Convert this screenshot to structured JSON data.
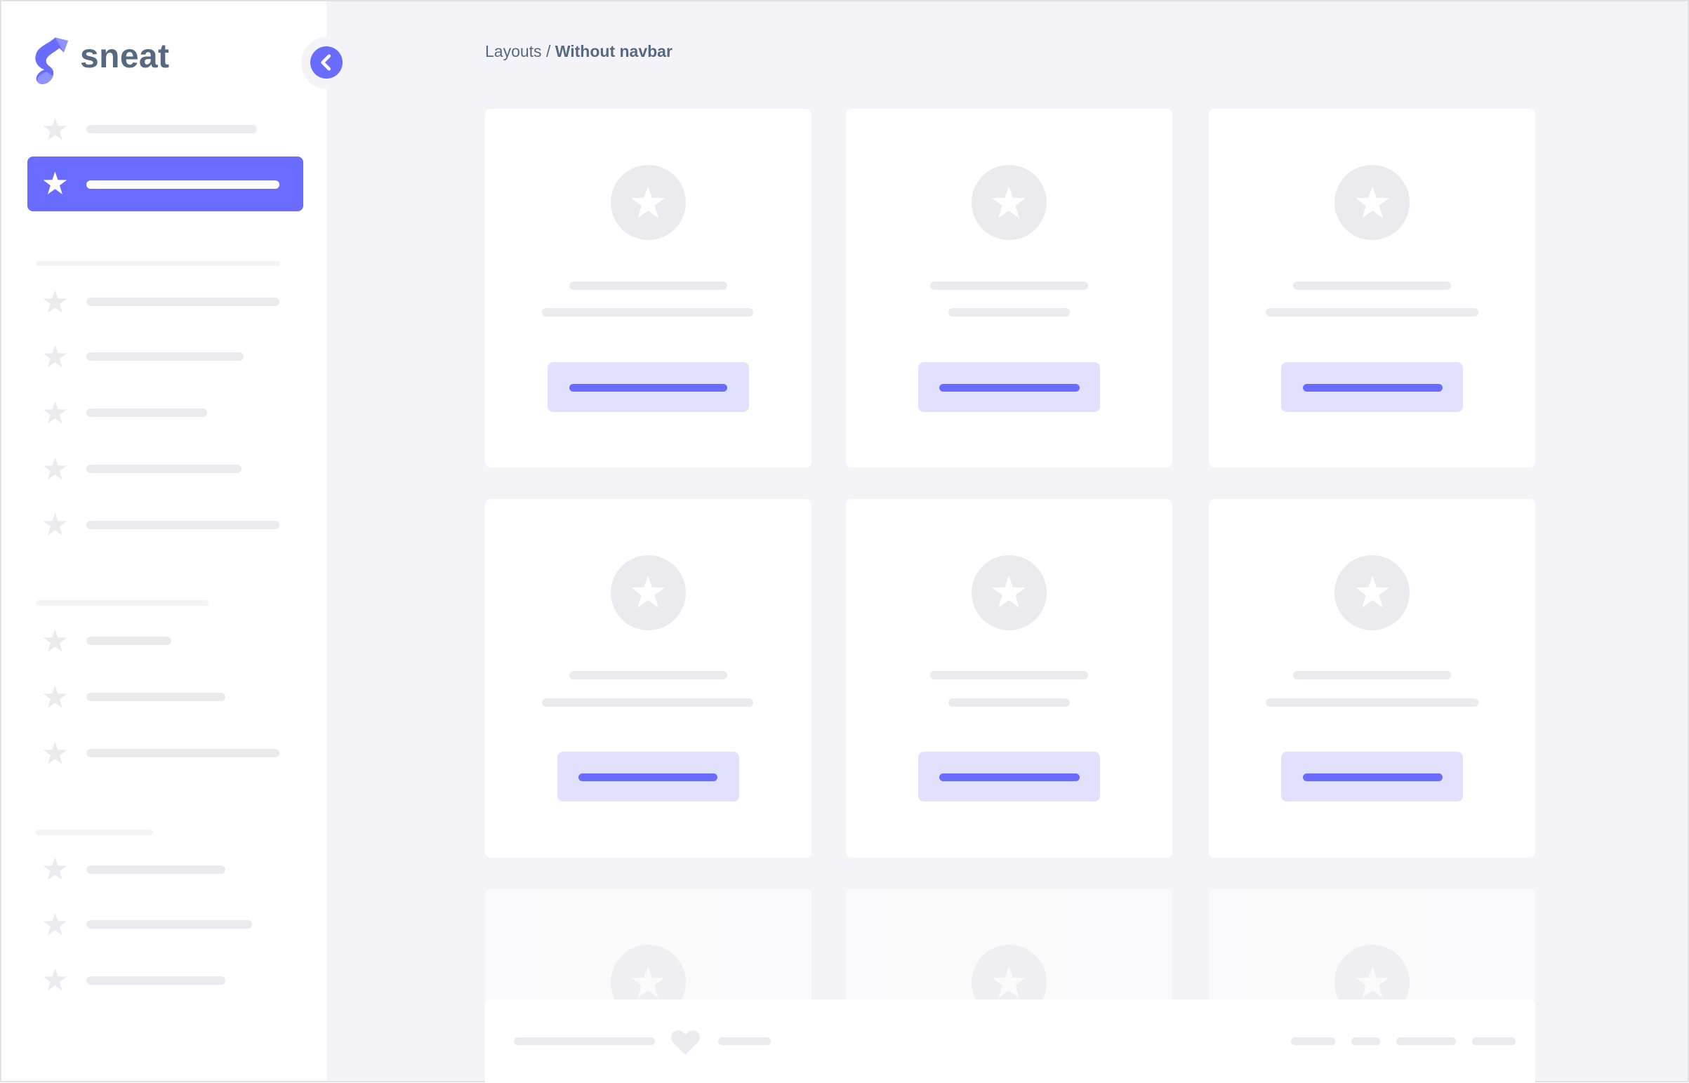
{
  "sidebar": {
    "logo_text": "sneat",
    "collapse_icon": "chevron-left-icon",
    "menu_icon": "star-icon"
  },
  "breadcrumb": {
    "parent": "Layouts",
    "separator": " / ",
    "current": "Without navbar"
  },
  "footer": {
    "icon": "heart-icon"
  },
  "colors": {
    "primary": "#696cff",
    "primary_light": "#e1e1fd",
    "text": "#566a7f",
    "background": "#f4f4f8",
    "placeholder": "#ebebef"
  }
}
